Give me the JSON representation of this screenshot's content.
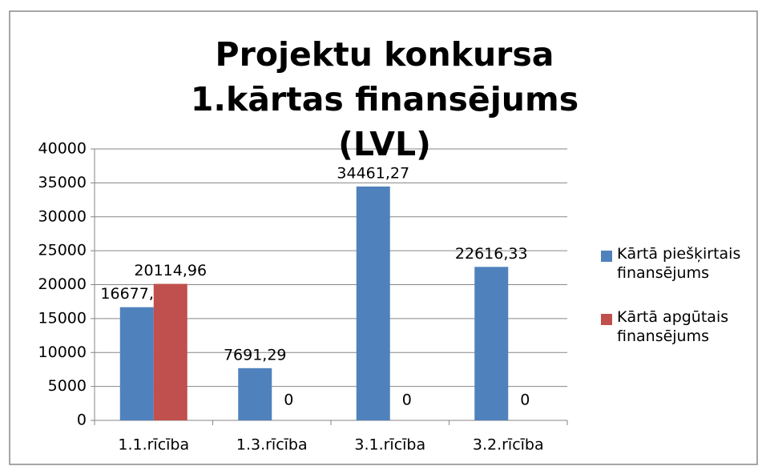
{
  "chart_data": {
    "type": "bar",
    "title": "Projektu konkursa 1.kārtas finansējums (LVL)",
    "categories": [
      "1.1.rīcība",
      "1.3.rīcība",
      "3.1.rīcība",
      "3.2.rīcība"
    ],
    "series": [
      {
        "name": "Kārtā piešķirtais finansējums",
        "color": "#4f81bd",
        "values": [
          16677.41,
          7691.29,
          34461.27,
          22616.33
        ],
        "value_labels": [
          "16677,41",
          "7691,29",
          "34461,27",
          "22616,33"
        ]
      },
      {
        "name": "Kārtā apgūtais finansējums",
        "color": "#c0504d",
        "values": [
          20114.96,
          0,
          0,
          0
        ],
        "value_labels": [
          "20114,96",
          "0",
          "0",
          "0"
        ]
      }
    ],
    "ylim": [
      0,
      40000
    ],
    "yticks": [
      0,
      5000,
      10000,
      15000,
      20000,
      25000,
      30000,
      35000,
      40000
    ],
    "grid": true,
    "legend": "right"
  }
}
